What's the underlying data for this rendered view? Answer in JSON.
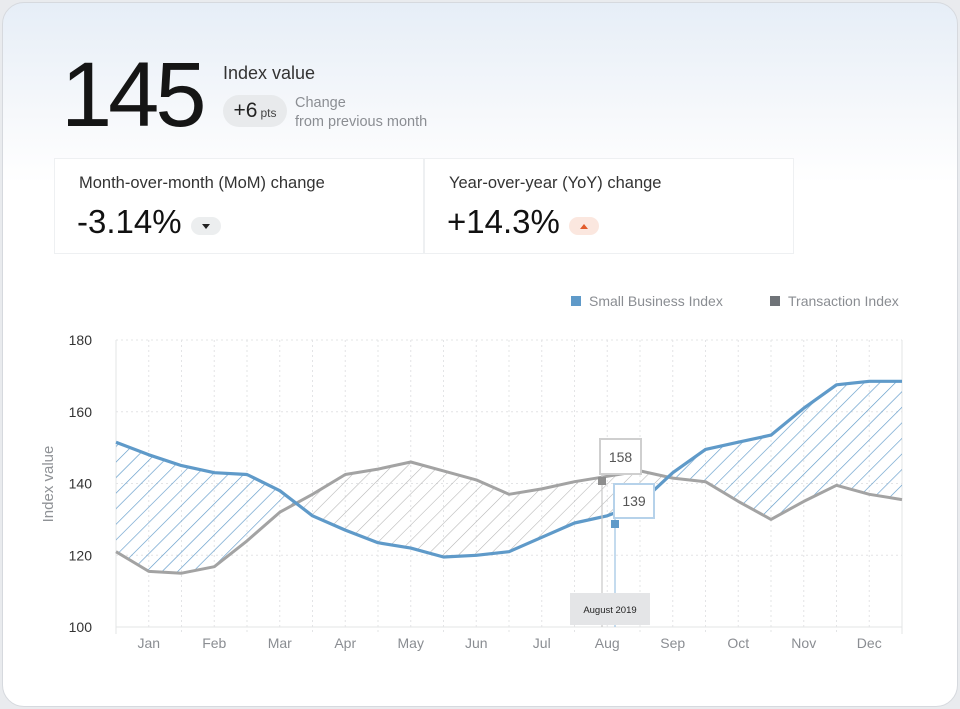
{
  "header": {
    "index_value": "145",
    "index_label": "Index value",
    "change_value": "+6",
    "change_unit": "pts",
    "change_text_line1": "Change",
    "change_text_line2": "from previous month"
  },
  "kpis": {
    "mom_label": "Month-over-month (MoM) change",
    "mom_value": "-3.14%",
    "yoy_label": "Year-over-year (YoY) change",
    "yoy_value": "+14.3%"
  },
  "colors": {
    "small_business": "#5f9ac9",
    "transaction": "#a3a3a3",
    "up_accent": "#e25b2b"
  },
  "chart_data": {
    "type": "line",
    "title": "",
    "xlabel": "",
    "ylabel": "Index value",
    "ylim": [
      100,
      180
    ],
    "yticks": [
      100,
      120,
      140,
      160,
      180
    ],
    "categories": [
      "Jan",
      "Feb",
      "Mar",
      "Apr",
      "May",
      "Jun",
      "Jul",
      "Aug",
      "Sep",
      "Oct",
      "Nov",
      "Dec"
    ],
    "x": [
      0,
      0.5,
      1.0,
      1.5,
      2.0,
      2.5,
      3.0,
      3.5,
      4.0,
      4.5,
      5.0,
      5.5,
      6.0,
      6.5,
      7.0,
      7.5,
      8.0,
      8.5,
      9.0,
      9.5,
      10.0,
      10.5,
      11.0,
      11.5,
      12.0
    ],
    "series": [
      {
        "name": "Small Business Index",
        "color": "#5f9ac9",
        "values": [
          151.5,
          148,
          145,
          143,
          142.5,
          138,
          131,
          127,
          123.5,
          122,
          119.5,
          120,
          121,
          125,
          129,
          131,
          134.5,
          143,
          149.5,
          151.5,
          153.5,
          161,
          167.5,
          168.5,
          168.5
        ]
      },
      {
        "name": "Transaction Index",
        "color": "#a3a3a3",
        "values": [
          121,
          115.5,
          115,
          116.8,
          124,
          132,
          137,
          142.5,
          144,
          146,
          143.5,
          141,
          137,
          138.5,
          140.5,
          142,
          143.5,
          141.5,
          140.5,
          135,
          130,
          135,
          139.5,
          137,
          135.5
        ]
      }
    ],
    "tooltip": {
      "date": "August 2019",
      "transaction_value": "158",
      "small_business_value": "139"
    },
    "grid": true,
    "legend": "top-right"
  }
}
